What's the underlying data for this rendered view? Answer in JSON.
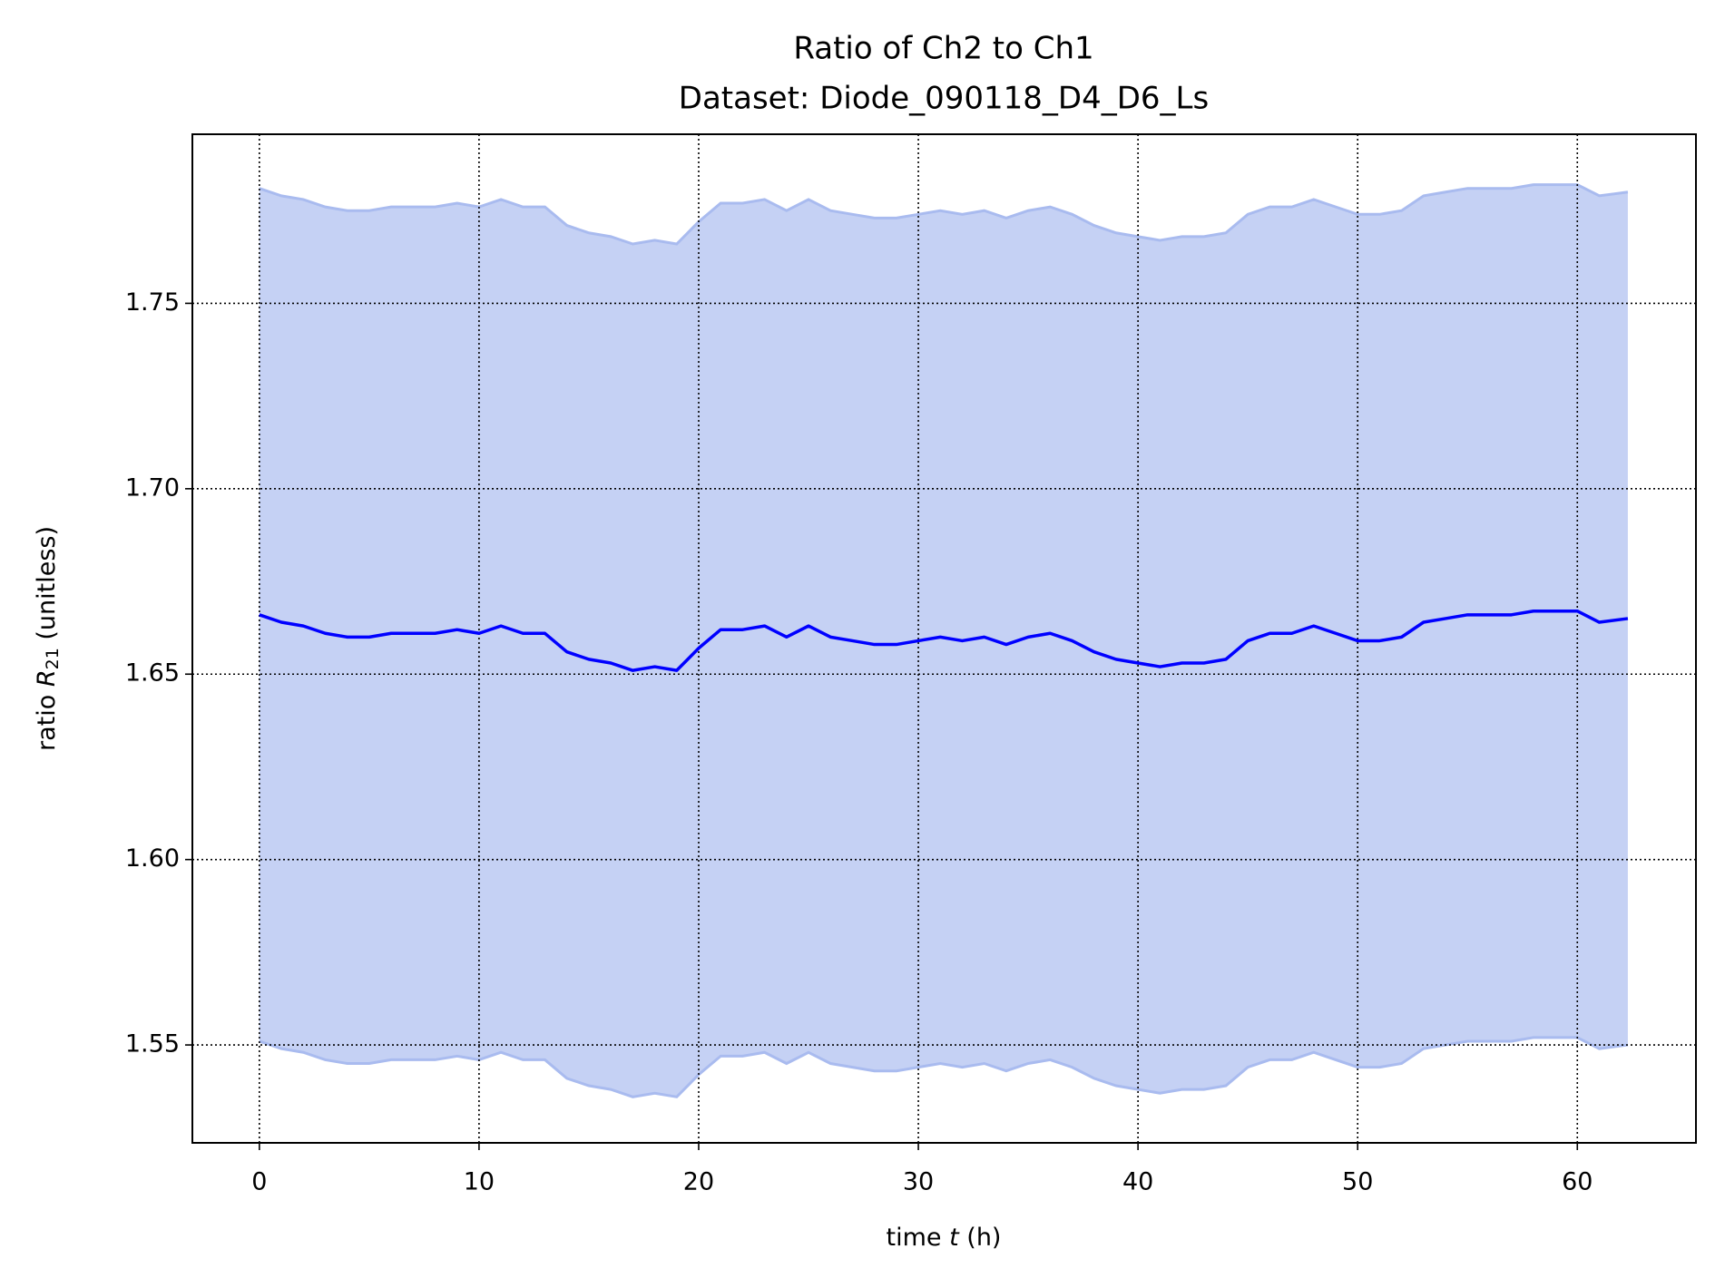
{
  "chart_data": {
    "type": "line",
    "title": "Ratio of Ch2 to Ch1",
    "subtitle": "Dataset: Diode_090118_D4_D6_Ls",
    "xlabel": {
      "prefix": "time ",
      "symbol": "t",
      "suffix": " (h)"
    },
    "ylabel": {
      "prefix": "ratio ",
      "symbol": "R",
      "subscript": "21",
      "suffix": " (unitless)"
    },
    "x": [
      0,
      1,
      2,
      3,
      4,
      5,
      6,
      7,
      8,
      9,
      10,
      11,
      12,
      13,
      14,
      15,
      16,
      17,
      18,
      19,
      20,
      21,
      22,
      23,
      24,
      25,
      26,
      27,
      28,
      29,
      30,
      31,
      32,
      33,
      34,
      35,
      36,
      37,
      38,
      39,
      40,
      41,
      42,
      43,
      44,
      45,
      46,
      47,
      48,
      49,
      50,
      51,
      52,
      53,
      54,
      55,
      56,
      57,
      58,
      59,
      60,
      61,
      62.3
    ],
    "series": [
      {
        "color": "#0000ff",
        "values": [
          1.666,
          1.664,
          1.663,
          1.661,
          1.66,
          1.66,
          1.661,
          1.661,
          1.661,
          1.662,
          1.661,
          1.663,
          1.661,
          1.661,
          1.656,
          1.654,
          1.653,
          1.651,
          1.652,
          1.651,
          1.657,
          1.662,
          1.662,
          1.663,
          1.66,
          1.663,
          1.66,
          1.659,
          1.658,
          1.658,
          1.659,
          1.66,
          1.659,
          1.66,
          1.658,
          1.66,
          1.661,
          1.659,
          1.656,
          1.654,
          1.653,
          1.652,
          1.653,
          1.653,
          1.654,
          1.659,
          1.661,
          1.661,
          1.663,
          1.661,
          1.659,
          1.659,
          1.66,
          1.664,
          1.665,
          1.666,
          1.666,
          1.666,
          1.667,
          1.667,
          1.667,
          1.664,
          1.665
        ]
      }
    ],
    "band": {
      "color": "#c5d1f4",
      "edge_color": "#a9bbef",
      "upper": [
        1.781,
        1.779,
        1.778,
        1.776,
        1.775,
        1.775,
        1.776,
        1.776,
        1.776,
        1.777,
        1.776,
        1.778,
        1.776,
        1.776,
        1.771,
        1.769,
        1.768,
        1.766,
        1.767,
        1.766,
        1.772,
        1.777,
        1.777,
        1.778,
        1.775,
        1.778,
        1.775,
        1.774,
        1.773,
        1.773,
        1.774,
        1.775,
        1.774,
        1.775,
        1.773,
        1.775,
        1.776,
        1.774,
        1.771,
        1.769,
        1.768,
        1.767,
        1.768,
        1.768,
        1.769,
        1.774,
        1.776,
        1.776,
        1.778,
        1.776,
        1.774,
        1.774,
        1.775,
        1.779,
        1.78,
        1.781,
        1.781,
        1.781,
        1.782,
        1.782,
        1.782,
        1.779,
        1.78
      ],
      "lower": [
        1.551,
        1.549,
        1.548,
        1.546,
        1.545,
        1.545,
        1.546,
        1.546,
        1.546,
        1.547,
        1.546,
        1.548,
        1.546,
        1.546,
        1.541,
        1.539,
        1.538,
        1.536,
        1.537,
        1.536,
        1.542,
        1.547,
        1.547,
        1.548,
        1.545,
        1.548,
        1.545,
        1.544,
        1.543,
        1.543,
        1.544,
        1.545,
        1.544,
        1.545,
        1.543,
        1.545,
        1.546,
        1.544,
        1.541,
        1.539,
        1.538,
        1.537,
        1.538,
        1.538,
        1.539,
        1.544,
        1.546,
        1.546,
        1.548,
        1.546,
        1.544,
        1.544,
        1.545,
        1.549,
        1.55,
        1.551,
        1.551,
        1.551,
        1.552,
        1.552,
        1.552,
        1.549,
        1.55
      ]
    },
    "xlim": [
      -3.05,
      65.4
    ],
    "ylim": [
      1.5236,
      1.7956
    ],
    "xticks": [
      0,
      10,
      20,
      30,
      40,
      50,
      60
    ],
    "yticks": [
      1.55,
      {
        "value": 1.6,
        "label": "1.60"
      },
      1.65,
      {
        "value": 1.7,
        "label": "1.70"
      },
      1.75
    ],
    "grid": true
  }
}
